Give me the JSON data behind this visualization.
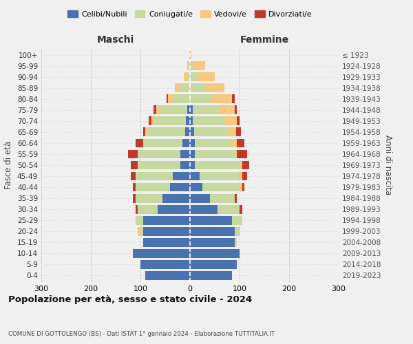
{
  "age_groups": [
    "0-4",
    "5-9",
    "10-14",
    "15-19",
    "20-24",
    "25-29",
    "30-34",
    "35-39",
    "40-44",
    "45-49",
    "50-54",
    "55-59",
    "60-64",
    "65-69",
    "70-74",
    "75-79",
    "80-84",
    "85-89",
    "90-94",
    "95-99",
    "100+"
  ],
  "birth_years": [
    "2019-2023",
    "2014-2018",
    "2009-2013",
    "2004-2008",
    "1999-2003",
    "1994-1998",
    "1989-1993",
    "1984-1988",
    "1979-1983",
    "1974-1978",
    "1969-1973",
    "1964-1968",
    "1959-1963",
    "1954-1958",
    "1949-1953",
    "1944-1948",
    "1939-1943",
    "1934-1938",
    "1929-1933",
    "1924-1928",
    "≤ 1923"
  ],
  "males": {
    "celibi": [
      90,
      100,
      115,
      95,
      95,
      95,
      65,
      55,
      40,
      35,
      20,
      20,
      15,
      10,
      8,
      5,
      0,
      0,
      0,
      0,
      0
    ],
    "coniugati": [
      0,
      0,
      0,
      0,
      5,
      15,
      40,
      55,
      70,
      75,
      85,
      85,
      80,
      75,
      65,
      55,
      35,
      20,
      5,
      3,
      1
    ],
    "vedovi": [
      0,
      0,
      0,
      0,
      5,
      0,
      0,
      0,
      0,
      0,
      0,
      0,
      0,
      5,
      5,
      8,
      10,
      10,
      8,
      3,
      0
    ],
    "divorziati": [
      0,
      0,
      0,
      0,
      0,
      0,
      5,
      5,
      5,
      10,
      15,
      20,
      15,
      5,
      5,
      5,
      2,
      0,
      0,
      0,
      0
    ]
  },
  "females": {
    "nubili": [
      85,
      95,
      100,
      90,
      90,
      85,
      55,
      40,
      25,
      20,
      10,
      10,
      10,
      8,
      5,
      5,
      0,
      0,
      0,
      0,
      0
    ],
    "coniugate": [
      0,
      0,
      0,
      5,
      10,
      20,
      45,
      50,
      75,
      80,
      90,
      80,
      75,
      70,
      65,
      55,
      45,
      30,
      15,
      5,
      0
    ],
    "vedove": [
      0,
      0,
      0,
      0,
      0,
      0,
      0,
      0,
      5,
      5,
      5,
      5,
      10,
      15,
      25,
      30,
      40,
      40,
      35,
      25,
      3
    ],
    "divorziate": [
      0,
      0,
      0,
      0,
      0,
      0,
      5,
      5,
      5,
      10,
      15,
      20,
      15,
      10,
      5,
      5,
      5,
      0,
      0,
      0,
      0
    ]
  },
  "colors": {
    "celibi": "#4a72b0",
    "coniugati": "#c6d9a0",
    "vedovi": "#f7c97e",
    "divorziati": "#c0392b"
  },
  "title": "Popolazione per età, sesso e stato civile - 2024",
  "subtitle": "COMUNE DI GOTTOLENGO (BS) - Dati ISTAT 1° gennaio 2024 - Elaborazione TUTTITALIA.IT",
  "xlabel_left": "Maschi",
  "xlabel_right": "Femmine",
  "ylabel_left": "Fasce di età",
  "ylabel_right": "Anni di nascita",
  "xlim": 300,
  "background_color": "#f0f0f0"
}
